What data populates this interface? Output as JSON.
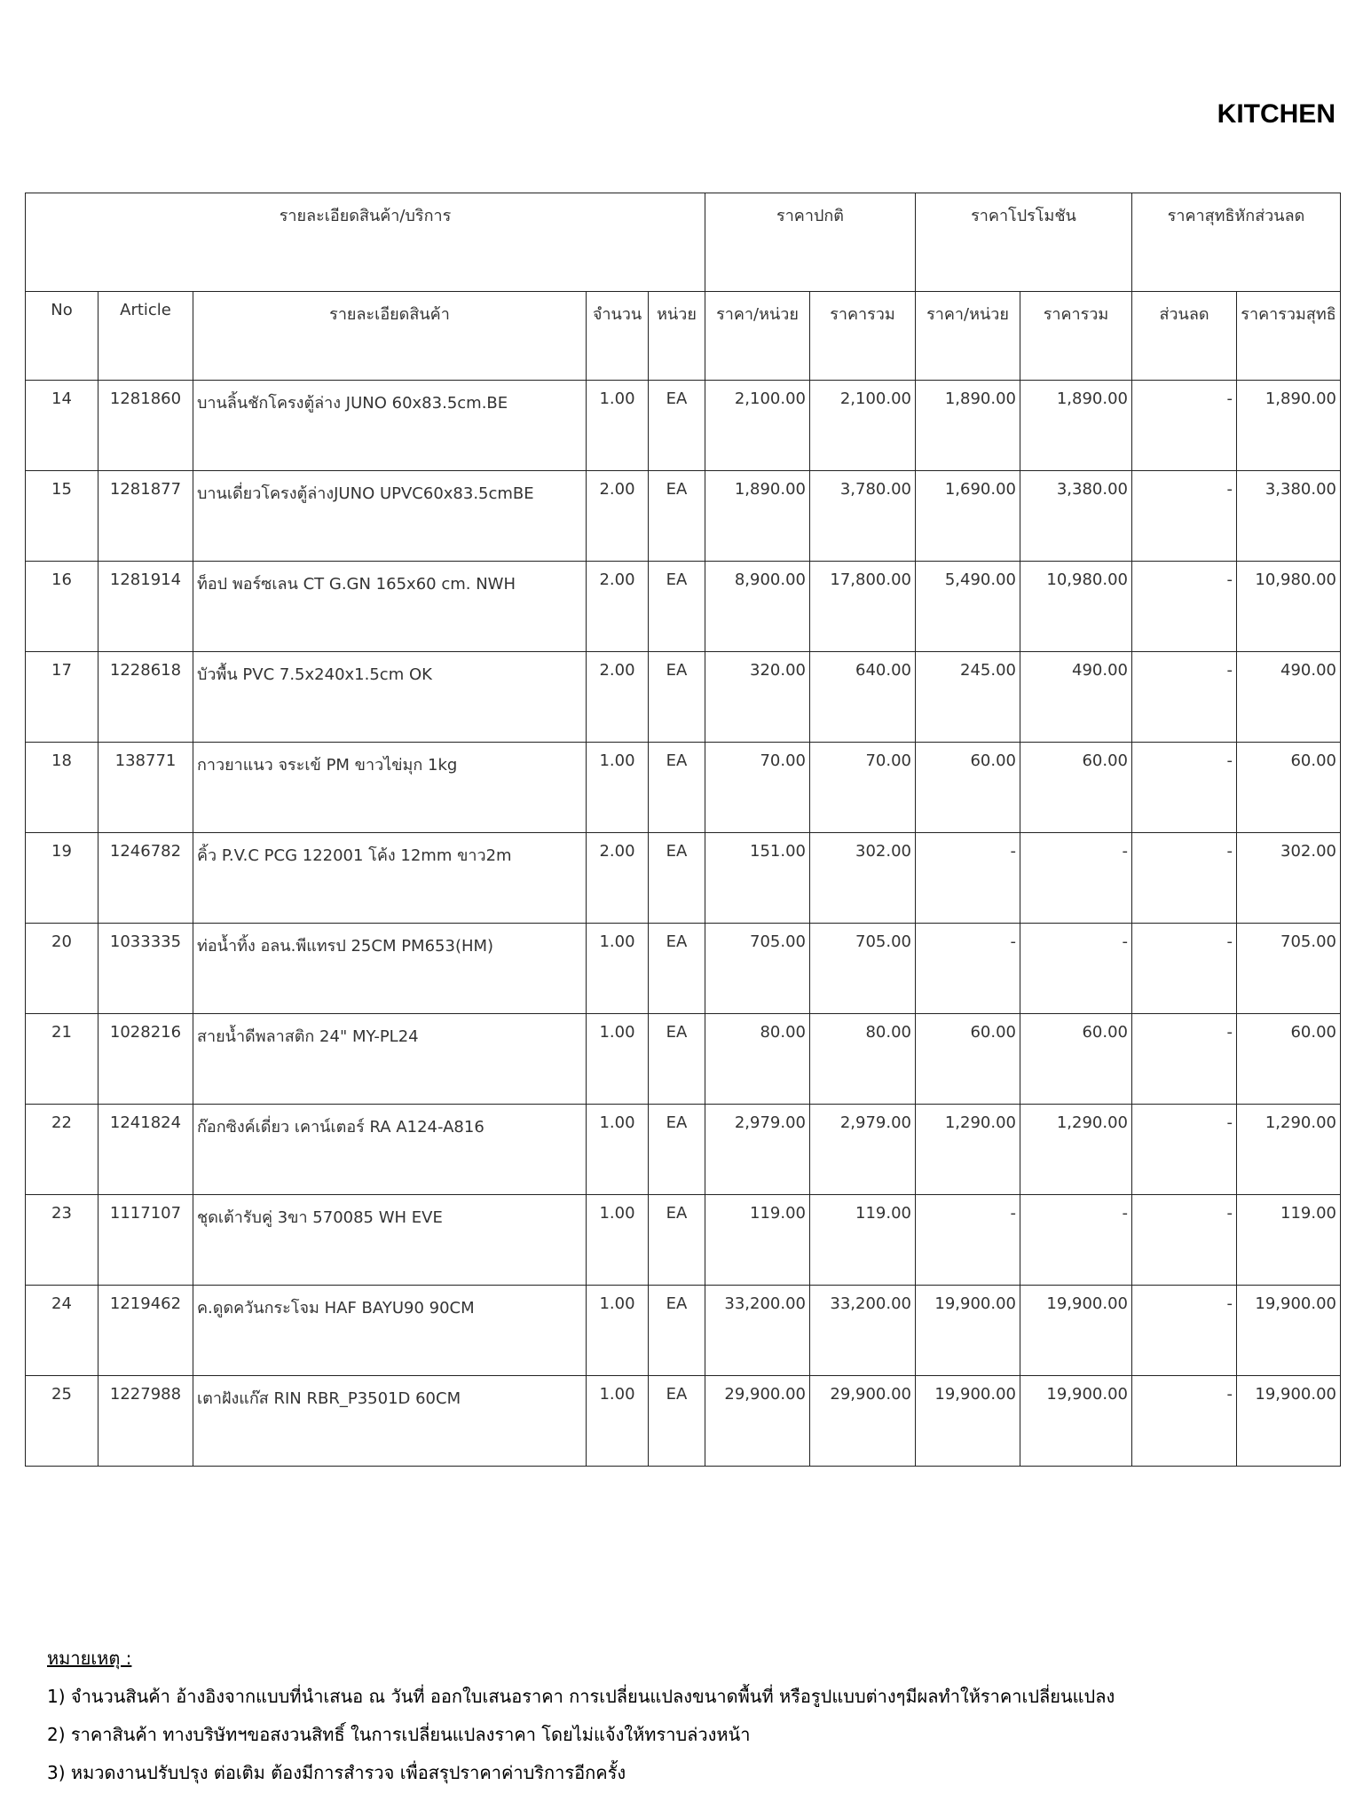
{
  "header": {
    "title": "KITCHEN"
  },
  "table": {
    "group_headers": [
      "รายละเอียดสินค้า/บริการ",
      "ราคาปกติ",
      "ราคาโปรโมชัน",
      "ราคาสุทธิหักส่วนลด"
    ],
    "columns": [
      "No",
      "Article",
      "รายละเอียดสินค้า",
      "จำนวน",
      "หน่วย",
      "ราคา/หน่วย",
      "ราคารวม",
      "ราคา/หน่วย",
      "ราคารวม",
      "ส่วนลด",
      "ราคารวมสุทธิ"
    ],
    "rows": [
      [
        "14",
        "1281860",
        "บานลิ้นชักโครงตู้ล่าง JUNO 60x83.5cm.BE",
        "1.00",
        "EA",
        "2,100.00",
        "2,100.00",
        "1,890.00",
        "1,890.00",
        "-",
        "1,890.00"
      ],
      [
        "15",
        "1281877",
        "บานเดี่ยวโครงตู้ล่างJUNO UPVC60x83.5cmBE",
        "2.00",
        "EA",
        "1,890.00",
        "3,780.00",
        "1,690.00",
        "3,380.00",
        "-",
        "3,380.00"
      ],
      [
        "16",
        "1281914",
        "ท็อป พอร์ซเลน CT G.GN 165x60 cm. NWH",
        "2.00",
        "EA",
        "8,900.00",
        "17,800.00",
        "5,490.00",
        "10,980.00",
        "-",
        "10,980.00"
      ],
      [
        "17",
        "1228618",
        "บัวพื้น PVC 7.5x240x1.5cm OK",
        "2.00",
        "EA",
        "320.00",
        "640.00",
        "245.00",
        "490.00",
        "-",
        "490.00"
      ],
      [
        "18",
        "138771",
        "กาวยาแนว จระเข้ PM ขาวไข่มุก 1kg",
        "1.00",
        "EA",
        "70.00",
        "70.00",
        "60.00",
        "60.00",
        "-",
        "60.00"
      ],
      [
        "19",
        "1246782",
        "คิ้ว P.V.C PCG 122001 โค้ง 12mm ขาว2m",
        "2.00",
        "EA",
        "151.00",
        "302.00",
        "-",
        "-",
        "-",
        "302.00"
      ],
      [
        "20",
        "1033335",
        "ท่อน้ำทิ้ง อลน.พีแทรป 25CM PM653(HM)",
        "1.00",
        "EA",
        "705.00",
        "705.00",
        "-",
        "-",
        "-",
        "705.00"
      ],
      [
        "21",
        "1028216",
        "สายน้ำดีพลาสติก 24\" MY-PL24",
        "1.00",
        "EA",
        "80.00",
        "80.00",
        "60.00",
        "60.00",
        "-",
        "60.00"
      ],
      [
        "22",
        "1241824",
        "ก๊อกซิงค์เดี่ยว เคาน์เตอร์ RA A124-A816",
        "1.00",
        "EA",
        "2,979.00",
        "2,979.00",
        "1,290.00",
        "1,290.00",
        "-",
        "1,290.00"
      ],
      [
        "23",
        "1117107",
        "ชุดเต้ารับคู่ 3ขา 570085 WH EVE",
        "1.00",
        "EA",
        "119.00",
        "119.00",
        "-",
        "-",
        "-",
        "119.00"
      ],
      [
        "24",
        "1219462",
        "ค.ดูดควันกระโจม HAF BAYU90 90CM",
        "1.00",
        "EA",
        "33,200.00",
        "33,200.00",
        "19,900.00",
        "19,900.00",
        "-",
        "19,900.00"
      ],
      [
        "25",
        "1227988",
        "เตาฝังแก๊ส RIN RBR_P3501D 60CM",
        "1.00",
        "EA",
        "29,900.00",
        "29,900.00",
        "19,900.00",
        "19,900.00",
        "-",
        "19,900.00"
      ]
    ]
  },
  "notes": {
    "title": "หมายเหตุ :",
    "items": [
      "1) จำนวนสินค้า อ้างอิงจากแบบที่นำเสนอ ณ วันที่ ออกใบเสนอราคา การเปลี่ยนแปลงขนาดพื้นที่ หรือรูปแบบต่างๆมีผลทำให้ราคาเปลี่ยนแปลง",
      "2) ราคาสินค้า ทางบริษัทฯขอสงวนสิทธิ์ ในการเปลี่ยนแปลงราคา โดยไม่แจ้งให้ทราบล่วงหน้า",
      "3) หมวดงานปรับปรุง ต่อเติม ต้องมีการสำรวจ เพื่อสรุปราคาค่าบริการอีกครั้ง"
    ]
  }
}
